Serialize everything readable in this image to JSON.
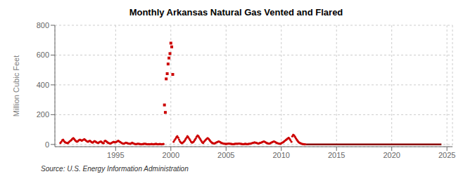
{
  "chart_data": {
    "type": "scatter",
    "title": "Monthly Arkansas Natural Gas Vented and Flared",
    "ylabel": "Million Cubic Feet",
    "annotations": [
      "Source: U.S. Energy Information Administration"
    ],
    "xlim": [
      1989.5,
      2025.5
    ],
    "ylim": [
      -15,
      800
    ],
    "xticks": [
      1995,
      2000,
      2005,
      2010,
      2015,
      2020,
      2025
    ],
    "yticks": [
      0,
      200,
      400,
      600,
      800
    ],
    "grid": true,
    "series": [
      {
        "type": "line",
        "color": "#8b0000",
        "x": [
          2012.25,
          2024.5
        ],
        "values": [
          0,
          0
        ]
      },
      {
        "type": "scatter",
        "marker": "circle",
        "color": "#cc0000",
        "x": [
          1990.0,
          1990.08,
          1990.17,
          1990.25,
          1990.33,
          1990.42,
          1990.5,
          1990.58,
          1990.67,
          1990.75,
          1990.83,
          1990.92,
          1991.0,
          1991.08,
          1991.17,
          1991.25,
          1991.33,
          1991.42,
          1991.5,
          1991.58,
          1991.67,
          1991.75,
          1991.83,
          1991.92,
          1992.0,
          1992.08,
          1992.17,
          1992.25,
          1992.33,
          1992.42,
          1992.5,
          1992.58,
          1992.67,
          1992.75,
          1992.83,
          1992.92,
          1993.0,
          1993.08,
          1993.17,
          1993.25,
          1993.33,
          1993.42,
          1993.5,
          1993.58,
          1993.67,
          1993.75,
          1993.83,
          1993.92,
          1994.0,
          1994.08,
          1994.17,
          1994.25,
          1994.33,
          1994.42,
          1994.5,
          1994.58,
          1994.67,
          1994.75,
          1994.83,
          1994.92,
          1995.0,
          1995.08,
          1995.17,
          1995.25,
          1995.33,
          1995.42,
          1995.5,
          1995.58,
          1995.67,
          1995.75,
          1995.83,
          1995.92,
          1996.0,
          1996.08,
          1996.17,
          1996.25,
          1996.33,
          1996.42,
          1996.5,
          1996.58,
          1996.67,
          1996.75,
          1996.83,
          1996.92,
          1997.0,
          1997.08,
          1997.17,
          1997.25,
          1997.33,
          1997.42,
          1997.5,
          1997.58,
          1997.67,
          1997.75,
          1997.83,
          1997.92,
          1998.0,
          1998.08,
          1998.17,
          1998.25,
          1998.33,
          1998.42,
          1998.5,
          1998.58,
          1998.67,
          1998.75,
          1998.83,
          1998.92,
          1999.0,
          1999.08,
          1999.17,
          1999.25,
          1999.33,
          2000.25,
          2000.33,
          2000.42,
          2000.5,
          2000.58,
          2000.67,
          2000.75,
          2000.83,
          2000.92,
          2001.0,
          2001.08,
          2001.17,
          2001.25,
          2001.33,
          2001.42,
          2001.5,
          2001.58,
          2001.67,
          2001.75,
          2001.83,
          2001.92,
          2002.0,
          2002.08,
          2002.17,
          2002.25,
          2002.33,
          2002.42,
          2002.5,
          2002.58,
          2002.67,
          2002.75,
          2002.83,
          2002.92,
          2003.0,
          2003.08,
          2003.17,
          2003.25,
          2003.33,
          2003.42,
          2003.5,
          2003.58,
          2003.67,
          2003.75,
          2003.83,
          2003.92,
          2004.0,
          2004.08,
          2004.17,
          2004.25,
          2004.33,
          2004.42,
          2004.5,
          2004.58,
          2004.67,
          2004.75,
          2004.83,
          2004.92,
          2005.0,
          2005.08,
          2005.17,
          2005.25,
          2005.33,
          2005.42,
          2005.5,
          2005.58,
          2005.67,
          2005.75,
          2005.83,
          2005.92,
          2006.0,
          2006.08,
          2006.17,
          2006.25,
          2006.33,
          2006.42,
          2006.5,
          2006.58,
          2006.67,
          2006.75,
          2006.83,
          2006.92,
          2007.0,
          2007.08,
          2007.17,
          2007.25,
          2007.33,
          2007.42,
          2007.5,
          2007.58,
          2007.67,
          2007.75,
          2007.83,
          2007.92,
          2008.0,
          2008.08,
          2008.17,
          2008.25,
          2008.33,
          2008.42,
          2008.5,
          2008.58,
          2008.67,
          2008.75,
          2008.83,
          2008.92,
          2009.0,
          2009.08,
          2009.17,
          2009.25,
          2009.33,
          2009.42,
          2009.5,
          2009.58,
          2009.67,
          2009.75,
          2009.83,
          2009.92,
          2010.0,
          2010.08,
          2010.17,
          2010.25,
          2010.33,
          2010.42,
          2010.5,
          2010.58,
          2010.67,
          2010.75,
          2010.83,
          2010.92,
          2011.0,
          2011.08,
          2011.17,
          2011.25,
          2011.33,
          2011.42,
          2011.5,
          2011.58,
          2011.67,
          2011.75,
          2011.83,
          2011.92,
          2012.0,
          2012.08,
          2012.17
        ],
        "values": [
          10,
          18,
          28,
          32,
          22,
          15,
          12,
          10,
          8,
          14,
          20,
          25,
          30,
          38,
          42,
          36,
          28,
          22,
          18,
          22,
          28,
          32,
          30,
          25,
          28,
          32,
          35,
          30,
          25,
          20,
          18,
          22,
          25,
          20,
          15,
          12,
          18,
          22,
          20,
          15,
          12,
          10,
          14,
          18,
          20,
          15,
          10,
          8,
          22,
          25,
          20,
          15,
          10,
          8,
          6,
          8,
          12,
          15,
          18,
          14,
          15,
          18,
          22,
          25,
          20,
          16,
          12,
          8,
          6,
          5,
          8,
          12,
          10,
          8,
          6,
          5,
          4,
          8,
          12,
          8,
          5,
          3,
          2,
          3,
          5,
          4,
          3,
          2,
          1,
          2,
          3,
          4,
          5,
          3,
          2,
          1,
          2,
          1,
          2,
          3,
          2,
          1,
          2,
          3,
          4,
          2,
          1,
          2,
          3,
          2,
          1,
          2,
          3,
          18,
          28,
          38,
          48,
          55,
          45,
          32,
          20,
          12,
          8,
          12,
          18,
          25,
          35,
          45,
          55,
          48,
          38,
          28,
          18,
          12,
          15,
          20,
          30,
          40,
          52,
          60,
          55,
          45,
          35,
          25,
          15,
          10,
          18,
          25,
          32,
          38,
          42,
          38,
          30,
          22,
          15,
          10,
          8,
          6,
          8,
          12,
          15,
          18,
          20,
          18,
          14,
          10,
          8,
          6,
          5,
          4,
          3,
          4,
          5,
          6,
          5,
          4,
          3,
          2,
          2,
          3,
          4,
          5,
          4,
          5,
          6,
          5,
          4,
          3,
          2,
          2,
          3,
          4,
          3,
          2,
          3,
          4,
          5,
          6,
          8,
          10,
          12,
          14,
          12,
          10,
          8,
          6,
          8,
          10,
          12,
          15,
          18,
          20,
          18,
          14,
          10,
          8,
          6,
          5,
          8,
          12,
          15,
          18,
          20,
          18,
          14,
          10,
          8,
          6,
          5,
          4,
          8,
          12,
          15,
          20,
          25,
          30,
          35,
          40,
          45,
          38,
          28,
          18,
          55,
          65,
          60,
          50,
          40,
          30,
          22,
          15,
          10,
          8,
          5,
          3,
          2,
          1,
          1
        ]
      },
      {
        "type": "scatter",
        "marker": "square",
        "color": "#cc0000",
        "x": [
          1999.42,
          1999.5,
          1999.58,
          1999.67,
          1999.75,
          1999.83,
          1999.92,
          2000.0,
          2000.08,
          2000.17
        ],
        "values": [
          265,
          215,
          440,
          475,
          540,
          580,
          610,
          680,
          655,
          470
        ]
      }
    ]
  }
}
